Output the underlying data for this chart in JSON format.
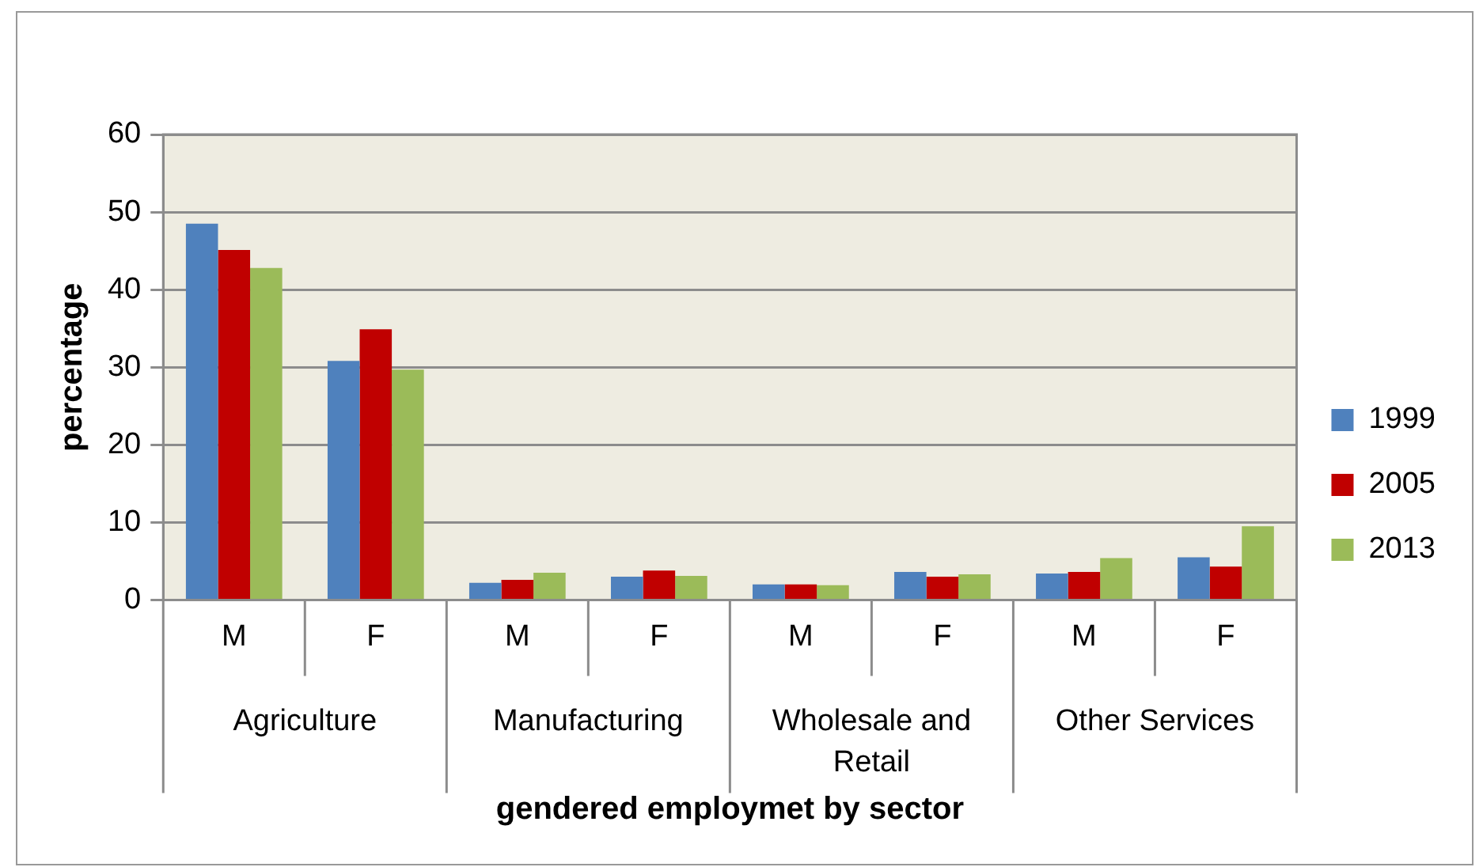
{
  "chart_data": {
    "type": "bar",
    "xlabel": "gendered employmet by sector",
    "ylabel": "percentage",
    "categories": [
      "M",
      "F",
      "M",
      "F",
      "M",
      "F",
      "M",
      "F"
    ],
    "annotations": [
      "Agriculture",
      "Manufacturing",
      "Wholesale and Retail",
      "Other Services"
    ],
    "series": [
      {
        "name": "1999",
        "color": "#4f81bd",
        "values": [
          48.5,
          30.8,
          2.2,
          3.0,
          2.0,
          3.6,
          3.4,
          5.5
        ]
      },
      {
        "name": "2005",
        "color": "#c00000",
        "values": [
          45.1,
          34.9,
          2.6,
          3.8,
          2.0,
          3.0,
          3.6,
          4.3
        ]
      },
      {
        "name": "2013",
        "color": "#9bbb59",
        "values": [
          42.8,
          29.7,
          3.5,
          3.1,
          1.9,
          3.3,
          5.4,
          9.5
        ]
      }
    ],
    "ylim": [
      0,
      60
    ],
    "yticks": [
      0,
      10,
      20,
      30,
      40,
      50,
      60
    ],
    "grid": "y",
    "legend": "right"
  }
}
